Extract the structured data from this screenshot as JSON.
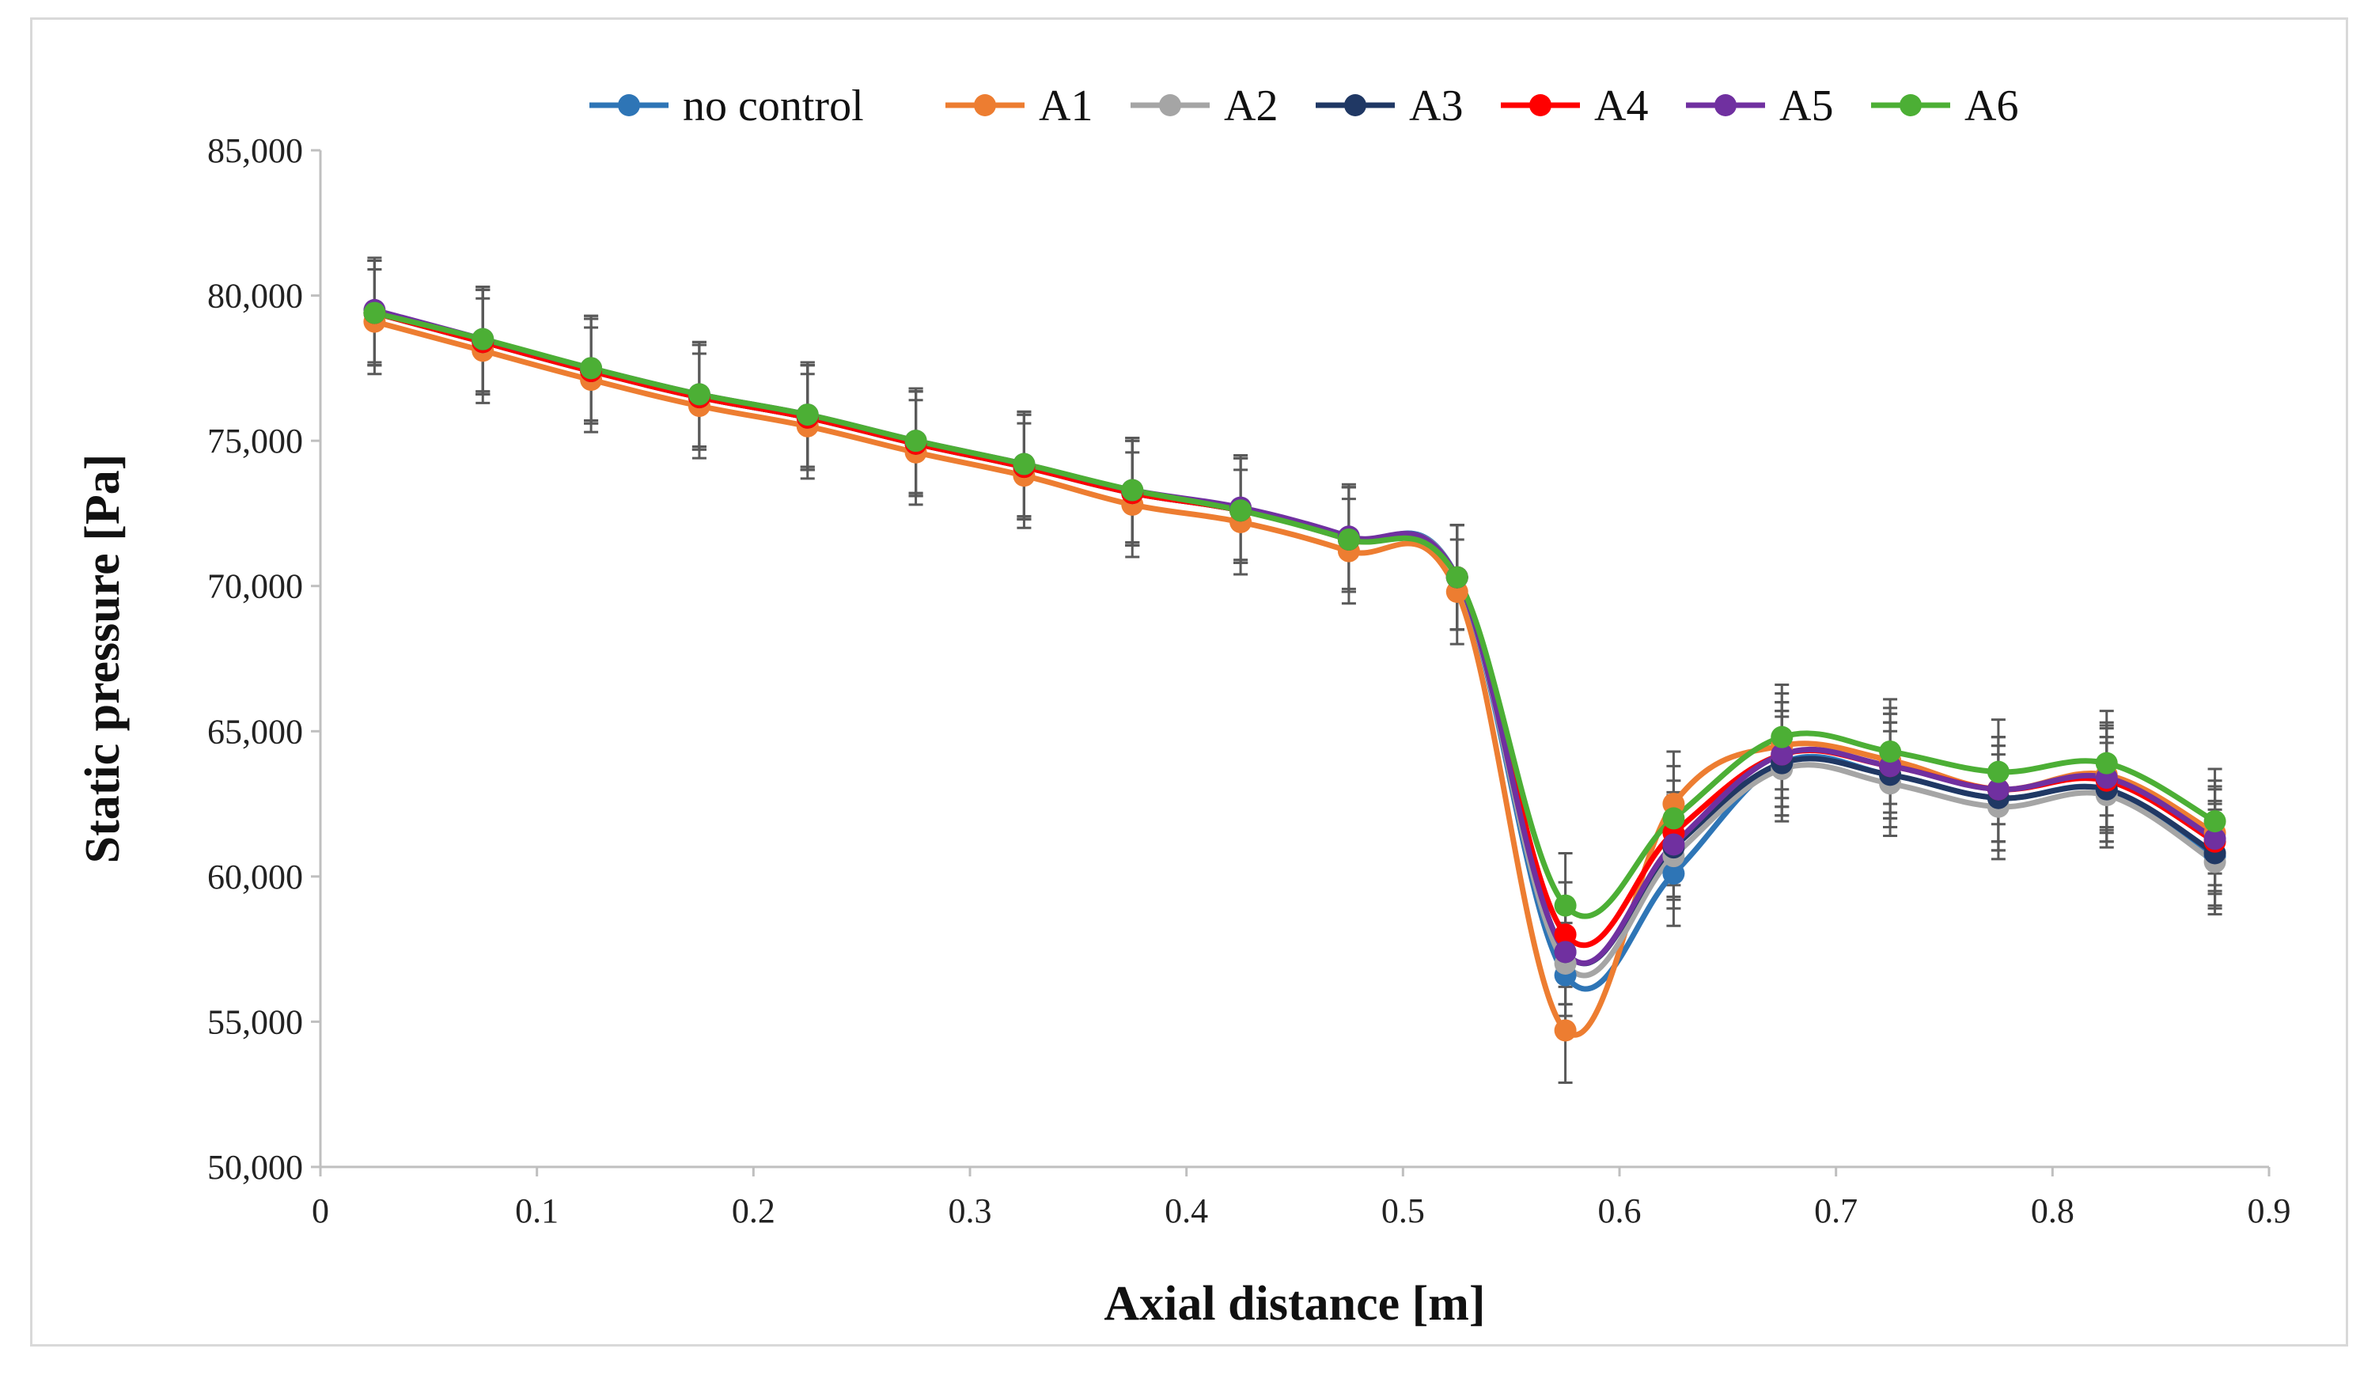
{
  "chart_data": {
    "type": "line",
    "title": "",
    "xlabel": "Axial distance [m]",
    "ylabel": "Static pressure [Pa]",
    "xlim": [
      0,
      0.9
    ],
    "ylim": [
      50000,
      85000
    ],
    "xticks": [
      0,
      0.1,
      0.2,
      0.3,
      0.4,
      0.5,
      0.6,
      0.7,
      0.8,
      0.9
    ],
    "xtick_labels": [
      "0",
      "0.1",
      "0.2",
      "0.3",
      "0.4",
      "0.5",
      "0.6",
      "0.7",
      "0.8",
      "0.9"
    ],
    "yticks": [
      50000,
      55000,
      60000,
      65000,
      70000,
      75000,
      80000,
      85000
    ],
    "ytick_labels": [
      "50,000",
      "55,000",
      "60,000",
      "65,000",
      "70,000",
      "75,000",
      "80,000",
      "85,000"
    ],
    "grid": false,
    "legend_position": "top",
    "x": [
      0.025,
      0.075,
      0.125,
      0.175,
      0.225,
      0.275,
      0.325,
      0.375,
      0.425,
      0.475,
      0.525,
      0.575,
      0.625,
      0.675,
      0.725,
      0.775,
      0.825,
      0.875
    ],
    "error_bar": 1800,
    "series": [
      {
        "name": "no control",
        "color": "#2e75b6",
        "values": [
          79400,
          78400,
          77400,
          76500,
          75800,
          74900,
          74100,
          73200,
          72600,
          71600,
          70300,
          56600,
          60100,
          63900,
          63500,
          62700,
          63000,
          60700
        ]
      },
      {
        "name": "A1",
        "color": "#ed7d31",
        "values": [
          79100,
          78100,
          77100,
          76200,
          75500,
          74600,
          73800,
          72800,
          72200,
          71200,
          69800,
          54700,
          62500,
          64500,
          64000,
          63000,
          63500,
          61500
        ]
      },
      {
        "name": "A2",
        "color": "#a5a5a5",
        "values": [
          79400,
          78400,
          77400,
          76500,
          75800,
          74900,
          74100,
          73200,
          72600,
          71600,
          70300,
          57000,
          60700,
          63700,
          63200,
          62400,
          62800,
          60500
        ]
      },
      {
        "name": "A3",
        "color": "#203864",
        "values": [
          79400,
          78400,
          77400,
          76500,
          75800,
          74900,
          74100,
          73200,
          72600,
          71600,
          70300,
          57400,
          61000,
          63900,
          63500,
          62700,
          63000,
          60800
        ]
      },
      {
        "name": "A4",
        "color": "#ff0000",
        "values": [
          79400,
          78400,
          77400,
          76500,
          75800,
          74900,
          74100,
          73200,
          72600,
          71600,
          70300,
          58000,
          61500,
          64200,
          63800,
          63000,
          63300,
          61200
        ]
      },
      {
        "name": "A5",
        "color": "#7030a0",
        "values": [
          79500,
          78500,
          77500,
          76600,
          75900,
          75000,
          74200,
          73300,
          72700,
          71700,
          70300,
          57400,
          61100,
          64200,
          63800,
          63000,
          63400,
          61300
        ]
      },
      {
        "name": "A6",
        "color": "#4caf35",
        "values": [
          79400,
          78500,
          77500,
          76600,
          75900,
          75000,
          74200,
          73300,
          72600,
          71600,
          70300,
          59000,
          62000,
          64800,
          64300,
          63600,
          63900,
          61900
        ]
      }
    ]
  }
}
